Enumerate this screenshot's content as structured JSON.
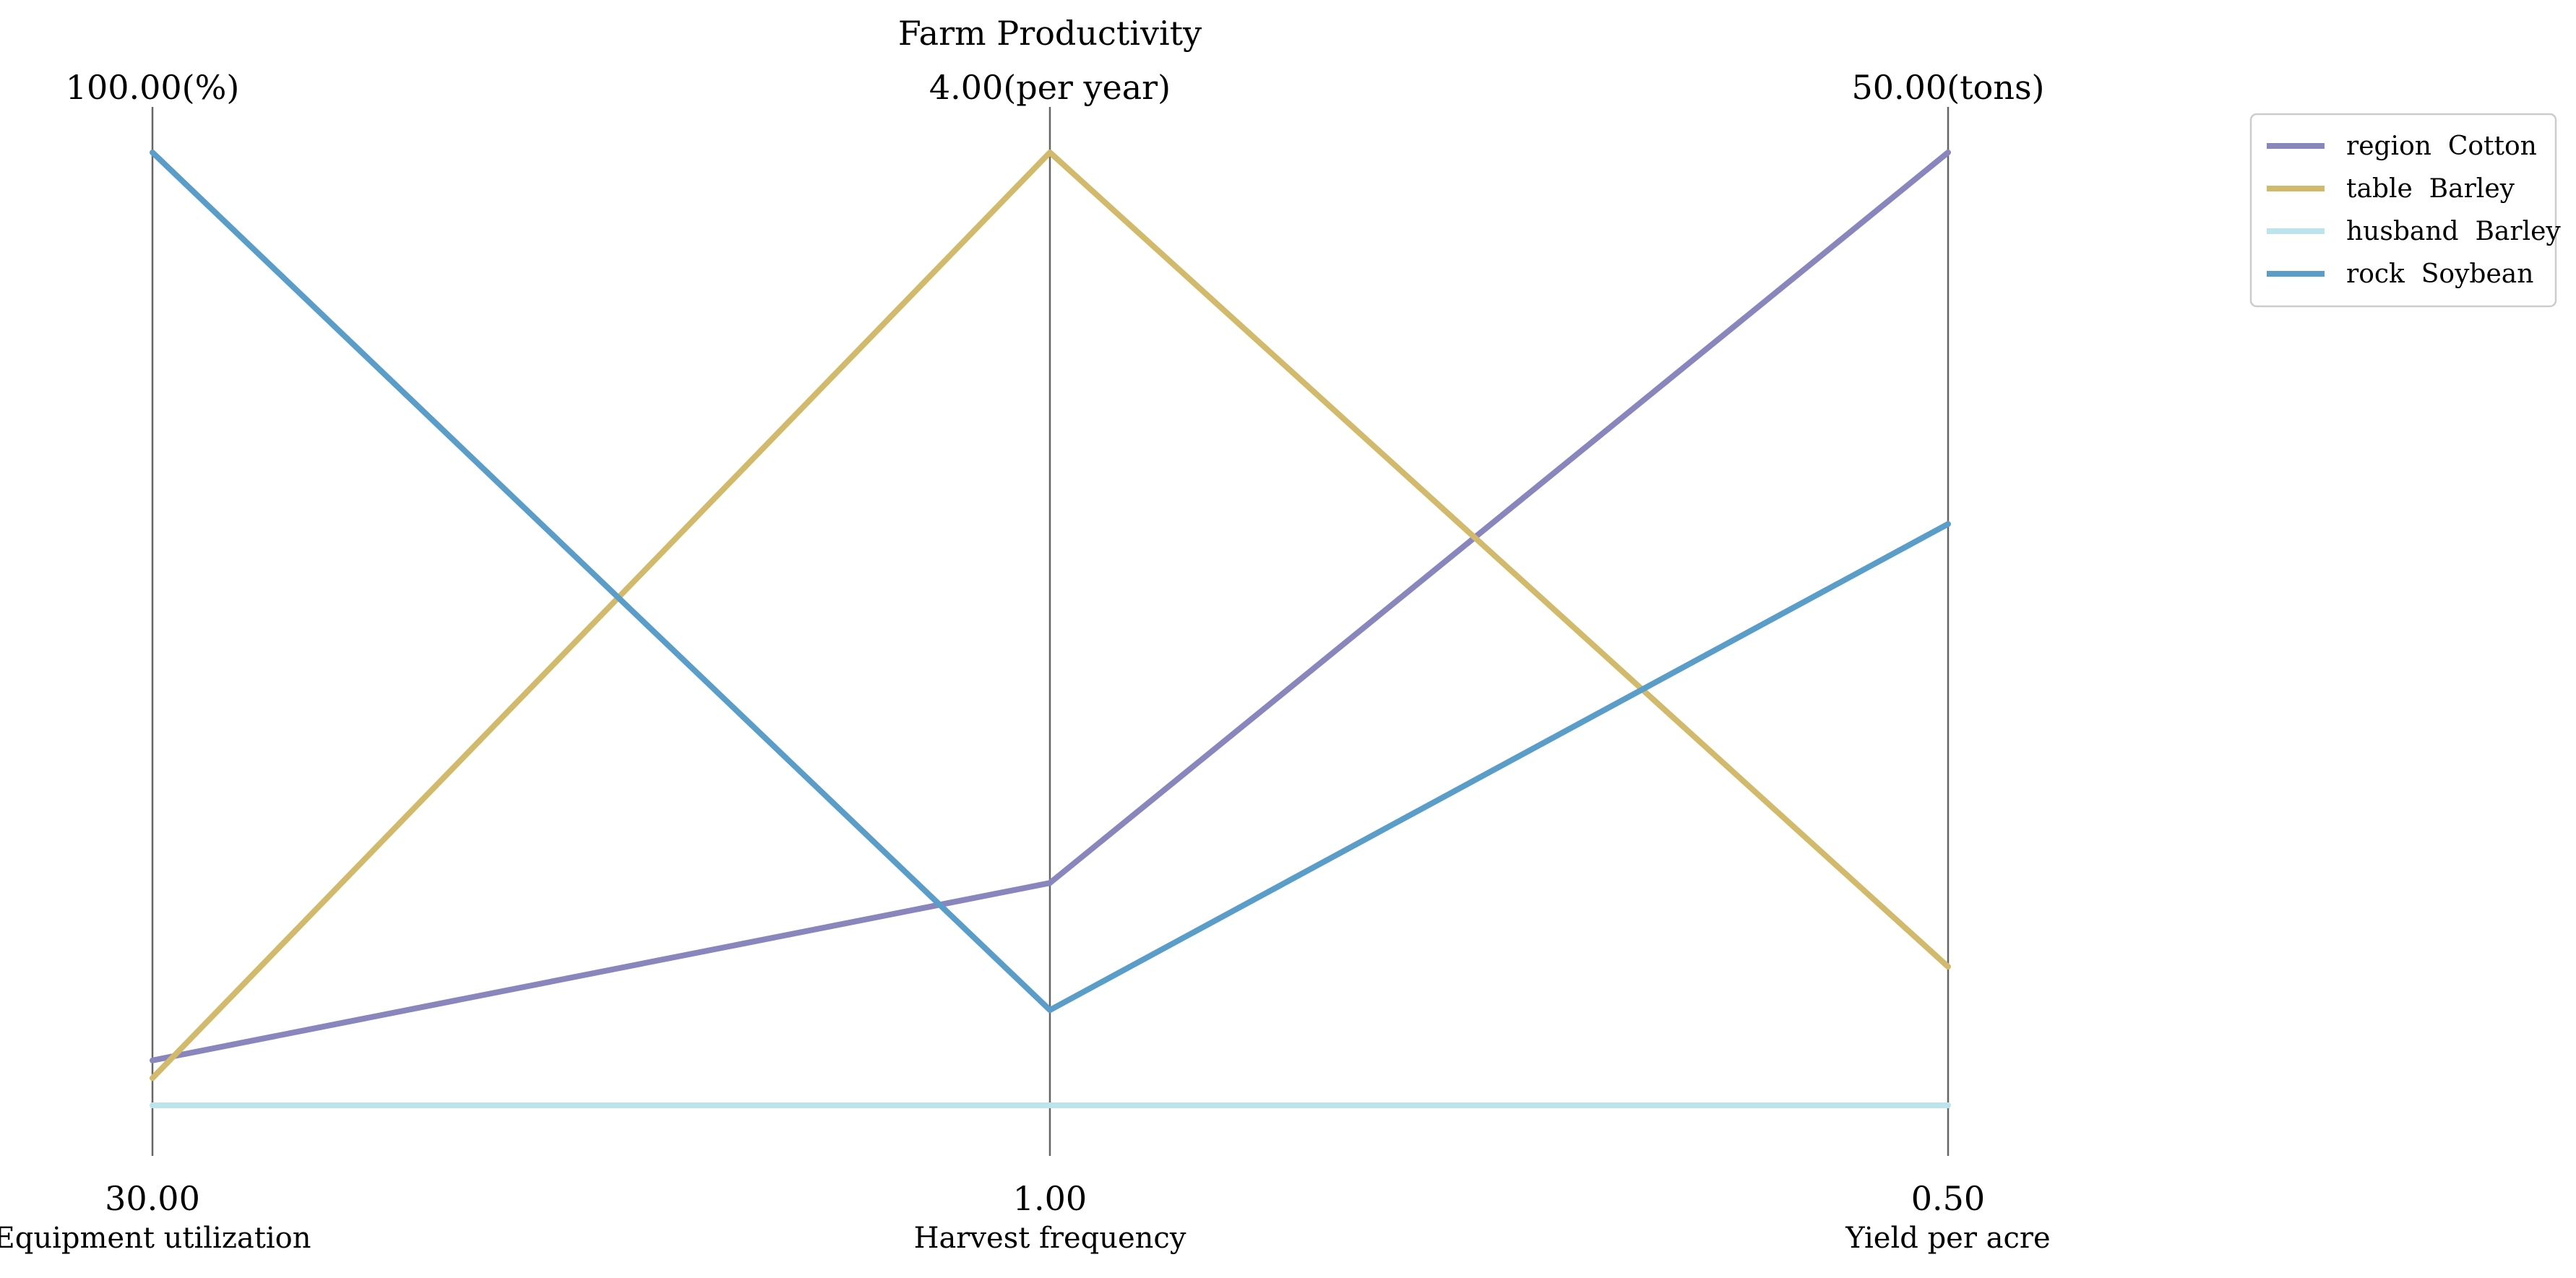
{
  "chart_data": {
    "type": "parallel-coordinates",
    "title": "Farm Productivity",
    "axes": [
      {
        "name": "Equipment utilization",
        "min": 30.0,
        "max": 100.0,
        "min_label": "30.00",
        "max_label": "100.00(%)"
      },
      {
        "name": "Harvest frequency",
        "min": 1.0,
        "max": 4.0,
        "min_label": "1.00",
        "max_label": "4.00(per year)"
      },
      {
        "name": "Yield per acre",
        "min": 0.5,
        "max": 50.0,
        "min_label": "0.50",
        "max_label": "50.00(tons)"
      }
    ],
    "series": [
      {
        "name": "region  Cotton",
        "color": "#8886bd",
        "values": [
          33.3,
          1.7,
          50.0
        ]
      },
      {
        "name": "table  Barley",
        "color": "#d2ba6c",
        "values": [
          32.0,
          4.0,
          7.7
        ]
      },
      {
        "name": "husband  Barley",
        "color": "#bde3ec",
        "values": [
          30.0,
          1.0,
          0.5
        ]
      },
      {
        "name": "rock  Soybean",
        "color": "#5b9dc9",
        "values": [
          100.0,
          1.3,
          30.7
        ]
      }
    ],
    "legend_position": "top-right"
  }
}
